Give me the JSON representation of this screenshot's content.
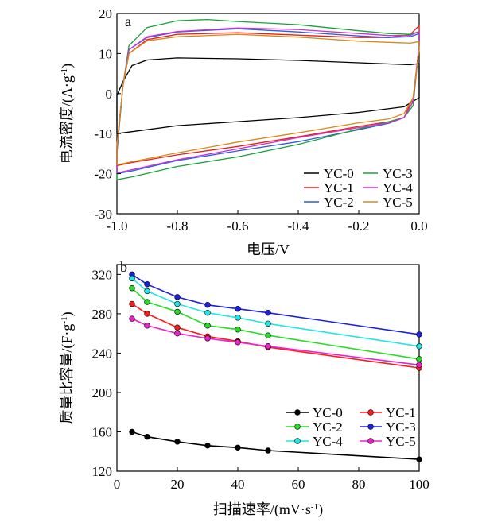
{
  "chart_data": [
    {
      "type": "line",
      "panel_label": "a",
      "xlabel": "电压/V",
      "ylabel_main": "电流密度/(A·g",
      "ylabel_sup": "-1",
      "ylabel_end": ")",
      "xlim": [
        -1.0,
        0.0
      ],
      "ylim": [
        -30,
        20
      ],
      "x_ticks": [
        -1.0,
        -0.8,
        -0.6,
        -0.4,
        -0.2,
        0.0
      ],
      "x_tick_labels": [
        "-1.0",
        "-0.8",
        "-0.6",
        "-0.4",
        "-0.2",
        "0.0"
      ],
      "y_ticks": [
        -30,
        -20,
        -10,
        0,
        10,
        20
      ],
      "y_tick_labels": [
        "-30",
        "-20",
        "-10",
        "0",
        "10",
        "20"
      ],
      "grid": false,
      "legend_position": "bottom-right",
      "series": [
        {
          "name": "YC-0",
          "color": "#000000",
          "upper": [
            [
              -1.0,
              -0.5
            ],
            [
              -0.98,
              3.0
            ],
            [
              -0.95,
              7.0
            ],
            [
              -0.9,
              8.4
            ],
            [
              -0.8,
              8.9
            ],
            [
              -0.6,
              8.7
            ],
            [
              -0.4,
              8.3
            ],
            [
              -0.2,
              7.7
            ],
            [
              -0.1,
              7.4
            ],
            [
              -0.03,
              7.2
            ],
            [
              0.0,
              7.5
            ]
          ],
          "lower": [
            [
              0.0,
              -1.0
            ],
            [
              -0.05,
              -3.3
            ],
            [
              -0.2,
              -4.7
            ],
            [
              -0.4,
              -6.0
            ],
            [
              -0.6,
              -7.0
            ],
            [
              -0.8,
              -8.0
            ],
            [
              -0.95,
              -9.5
            ],
            [
              -1.0,
              -10.0
            ]
          ]
        },
        {
          "name": "YC-1",
          "color": "#e8201c",
          "upper": [
            [
              -1.0,
              -13.0
            ],
            [
              -0.98,
              2.0
            ],
            [
              -0.96,
              10.0
            ],
            [
              -0.9,
              13.5
            ],
            [
              -0.8,
              14.8
            ],
            [
              -0.6,
              15.2
            ],
            [
              -0.4,
              14.6
            ],
            [
              -0.2,
              14.0
            ],
            [
              -0.1,
              14.0
            ],
            [
              -0.03,
              14.7
            ],
            [
              0.0,
              17.0
            ]
          ],
          "lower": [
            [
              0.0,
              12.0
            ],
            [
              -0.02,
              -1.0
            ],
            [
              -0.05,
              -6.0
            ],
            [
              -0.1,
              -7.0
            ],
            [
              -0.2,
              -8.2
            ],
            [
              -0.4,
              -10.8
            ],
            [
              -0.6,
              -13.2
            ],
            [
              -0.8,
              -15.3
            ],
            [
              -0.95,
              -17.2
            ],
            [
              -1.0,
              -18.0
            ]
          ]
        },
        {
          "name": "YC-2",
          "color": "#2a5ed8",
          "upper": [
            [
              -1.0,
              -14.0
            ],
            [
              -0.98,
              2.0
            ],
            [
              -0.96,
              11.0
            ],
            [
              -0.9,
              14.0
            ],
            [
              -0.8,
              15.4
            ],
            [
              -0.6,
              16.2
            ],
            [
              -0.4,
              15.4
            ],
            [
              -0.2,
              14.4
            ],
            [
              -0.1,
              14.0
            ],
            [
              -0.03,
              14.2
            ],
            [
              0.0,
              15.0
            ]
          ],
          "lower": [
            [
              0.0,
              12.0
            ],
            [
              -0.02,
              -2.0
            ],
            [
              -0.05,
              -6.0
            ],
            [
              -0.1,
              -7.4
            ],
            [
              -0.2,
              -9.0
            ],
            [
              -0.4,
              -12.0
            ],
            [
              -0.6,
              -14.3
            ],
            [
              -0.8,
              -16.7
            ],
            [
              -0.95,
              -19.3
            ],
            [
              -1.0,
              -20.0
            ]
          ]
        },
        {
          "name": "YC-3",
          "color": "#18a23a",
          "upper": [
            [
              -1.0,
              -15.0
            ],
            [
              -0.98,
              2.0
            ],
            [
              -0.96,
              12.0
            ],
            [
              -0.9,
              16.5
            ],
            [
              -0.8,
              18.2
            ],
            [
              -0.7,
              18.5
            ],
            [
              -0.6,
              18.0
            ],
            [
              -0.4,
              17.2
            ],
            [
              -0.2,
              15.7
            ],
            [
              -0.1,
              15.0
            ],
            [
              -0.03,
              14.8
            ],
            [
              0.0,
              15.5
            ]
          ],
          "lower": [
            [
              0.0,
              12.0
            ],
            [
              -0.02,
              -3.0
            ],
            [
              -0.05,
              -6.0
            ],
            [
              -0.1,
              -7.0
            ],
            [
              -0.2,
              -8.8
            ],
            [
              -0.4,
              -12.7
            ],
            [
              -0.6,
              -15.8
            ],
            [
              -0.8,
              -18.2
            ],
            [
              -0.95,
              -20.8
            ],
            [
              -1.0,
              -21.5
            ]
          ]
        },
        {
          "name": "YC-4",
          "color": "#d030d0",
          "upper": [
            [
              -1.0,
              -14.0
            ],
            [
              -0.98,
              2.0
            ],
            [
              -0.96,
              11.0
            ],
            [
              -0.9,
              14.2
            ],
            [
              -0.8,
              15.5
            ],
            [
              -0.6,
              16.4
            ],
            [
              -0.4,
              16.0
            ],
            [
              -0.2,
              15.0
            ],
            [
              -0.1,
              14.5
            ],
            [
              -0.03,
              14.5
            ],
            [
              0.0,
              15.5
            ]
          ],
          "lower": [
            [
              0.0,
              12.0
            ],
            [
              -0.02,
              -2.0
            ],
            [
              -0.05,
              -6.0
            ],
            [
              -0.1,
              -7.3
            ],
            [
              -0.2,
              -8.5
            ],
            [
              -0.4,
              -11.0
            ],
            [
              -0.6,
              -13.8
            ],
            [
              -0.8,
              -16.5
            ],
            [
              -0.95,
              -19.0
            ],
            [
              -1.0,
              -19.8
            ]
          ]
        },
        {
          "name": "YC-5",
          "color": "#d98a18",
          "upper": [
            [
              -1.0,
              -13.0
            ],
            [
              -0.98,
              2.0
            ],
            [
              -0.96,
              10.0
            ],
            [
              -0.9,
              13.2
            ],
            [
              -0.8,
              14.2
            ],
            [
              -0.6,
              14.8
            ],
            [
              -0.4,
              14.1
            ],
            [
              -0.2,
              13.1
            ],
            [
              -0.1,
              12.8
            ],
            [
              -0.03,
              12.6
            ],
            [
              0.0,
              13.0
            ]
          ],
          "lower": [
            [
              0.0,
              11.0
            ],
            [
              -0.02,
              -1.0
            ],
            [
              -0.05,
              -5.0
            ],
            [
              -0.1,
              -6.3
            ],
            [
              -0.2,
              -7.3
            ],
            [
              -0.4,
              -9.8
            ],
            [
              -0.6,
              -12.1
            ],
            [
              -0.8,
              -14.8
            ],
            [
              -0.95,
              -17.0
            ],
            [
              -1.0,
              -17.8
            ]
          ]
        }
      ]
    },
    {
      "type": "line",
      "panel_label": "b",
      "xlabel_main": "扫描速率/(mV·s",
      "xlabel_sup": "-1",
      "xlabel_end": ")",
      "ylabel_main": "质量比容量/(F·g",
      "ylabel_sup": "-1",
      "ylabel_end": ")",
      "xlim": [
        0,
        100
      ],
      "ylim": [
        120,
        330
      ],
      "x_ticks": [
        0,
        20,
        40,
        60,
        80,
        100
      ],
      "x_tick_labels": [
        "0",
        "20",
        "40",
        "60",
        "80",
        "100"
      ],
      "y_ticks": [
        120,
        160,
        200,
        240,
        280,
        320
      ],
      "y_tick_labels": [
        "120",
        "160",
        "200",
        "240",
        "280",
        "320"
      ],
      "grid": false,
      "legend_position": "bottom-right",
      "x": [
        5,
        10,
        20,
        30,
        40,
        50,
        100
      ],
      "series": [
        {
          "name": "YC-0",
          "color": "#000000",
          "values": [
            160,
            155,
            150,
            146,
            144,
            141,
            132
          ]
        },
        {
          "name": "YC-1",
          "color": "#ff1a1a",
          "values": [
            290,
            280,
            266,
            257,
            252,
            246,
            225
          ]
        },
        {
          "name": "YC-2",
          "color": "#22dd22",
          "values": [
            306,
            292,
            282,
            268,
            264,
            258,
            234
          ]
        },
        {
          "name": "YC-3",
          "color": "#1c22e0",
          "values": [
            320,
            310,
            297,
            289,
            285,
            281,
            259
          ]
        },
        {
          "name": "YC-4",
          "color": "#22e5e5",
          "values": [
            316,
            303,
            290,
            281,
            276,
            270,
            247
          ]
        },
        {
          "name": "YC-5",
          "color": "#ee22cc",
          "values": [
            275,
            268,
            260,
            255,
            251,
            247,
            228
          ]
        }
      ]
    }
  ]
}
